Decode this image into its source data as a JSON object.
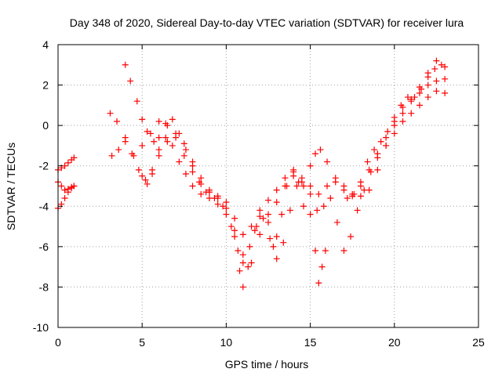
{
  "chart_data": {
    "type": "scatter",
    "title": "Day 348 of 2020, Sidereal Day-to-day VTEC variation (SDTVAR) for receiver lura",
    "xlabel": "GPS time / hours",
    "ylabel": "SDTVAR / TECUs",
    "xlim": [
      0,
      25
    ],
    "ylim": [
      -10,
      4
    ],
    "xticks": [
      0,
      5,
      10,
      15,
      20,
      25
    ],
    "yticks": [
      -10,
      -8,
      -6,
      -4,
      -2,
      0,
      2,
      4
    ],
    "grid": true,
    "marker": "+",
    "colors": {
      "series": "#ff0000",
      "grid": "#a0a0a0",
      "axis": "#000000"
    },
    "series": [
      {
        "values": [
          [
            0.0,
            -2.2
          ],
          [
            0.2,
            -2.1
          ],
          [
            0.4,
            -2.0
          ],
          [
            0.6,
            -1.85
          ],
          [
            0.8,
            -1.7
          ],
          [
            0.95,
            -1.6
          ]
        ]
      },
      {
        "values": [
          [
            0.0,
            -2.8
          ],
          [
            0.2,
            -3.0
          ],
          [
            0.4,
            -3.2
          ],
          [
            0.6,
            -3.15
          ],
          [
            0.8,
            -3.05
          ],
          [
            0.95,
            -3.0
          ]
        ]
      },
      {
        "values": [
          [
            0.0,
            -4.1
          ],
          [
            0.2,
            -3.9
          ],
          [
            0.4,
            -3.6
          ],
          [
            0.6,
            -3.3
          ],
          [
            0.8,
            -3.1
          ],
          [
            0.95,
            -3.0
          ]
        ]
      },
      {
        "values": [
          [
            3.1,
            0.6
          ],
          [
            3.5,
            0.2
          ],
          [
            4.0,
            -0.6
          ],
          [
            4.5,
            -1.5
          ],
          [
            5.0,
            -2.5
          ],
          [
            5.3,
            -2.9
          ],
          [
            5.6,
            -2.4
          ],
          [
            6.0,
            -1.5
          ],
          [
            6.5,
            -0.8
          ],
          [
            7.0,
            -0.4
          ],
          [
            7.5,
            -0.9
          ],
          [
            8.0,
            -1.8
          ],
          [
            8.5,
            -2.6
          ],
          [
            9.0,
            -3.3
          ],
          [
            9.5,
            -3.6
          ],
          [
            10.0,
            -4.1
          ],
          [
            10.5,
            -5.5
          ],
          [
            10.8,
            -7.2
          ],
          [
            11.0,
            -8.0
          ],
          [
            11.3,
            -7.0
          ],
          [
            11.7,
            -5.2
          ],
          [
            12.0,
            -4.5
          ],
          [
            12.5,
            -4.8
          ],
          [
            12.8,
            -6.0
          ],
          [
            13.0,
            -5.5
          ],
          [
            13.3,
            -4.4
          ],
          [
            13.6,
            -3.0
          ],
          [
            14.0,
            -2.2
          ],
          [
            14.3,
            -2.8
          ],
          [
            14.6,
            -3.0
          ],
          [
            15.0,
            -2.0
          ],
          [
            15.3,
            -1.4
          ],
          [
            15.6,
            -1.2
          ],
          [
            16.0,
            -1.8
          ],
          [
            16.5,
            -2.6
          ],
          [
            17.0,
            -3.2
          ],
          [
            17.5,
            -3.5
          ],
          [
            18.0,
            -3.5
          ],
          [
            18.5,
            -3.2
          ],
          [
            19.0,
            -2.2
          ],
          [
            19.5,
            -1.0
          ],
          [
            20.0,
            0.0
          ],
          [
            20.5,
            0.6
          ],
          [
            21.0,
            1.2
          ],
          [
            21.5,
            1.9
          ],
          [
            22.0,
            2.6
          ],
          [
            22.5,
            3.2
          ],
          [
            23.0,
            2.9
          ]
        ]
      },
      {
        "values": [
          [
            4.0,
            3.0
          ],
          [
            4.3,
            2.2
          ],
          [
            4.7,
            1.2
          ],
          [
            5.0,
            0.3
          ],
          [
            5.3,
            -0.3
          ],
          [
            5.7,
            -0.8
          ],
          [
            6.0,
            -0.6
          ],
          [
            6.4,
            0.1
          ],
          [
            6.8,
            0.3
          ],
          [
            7.2,
            -0.4
          ],
          [
            7.6,
            -1.2
          ],
          [
            8.0,
            -2.0
          ],
          [
            8.4,
            -2.8
          ],
          [
            8.8,
            -3.3
          ],
          [
            9.3,
            -3.6
          ],
          [
            9.8,
            -4.0
          ],
          [
            10.3,
            -5.0
          ],
          [
            10.7,
            -6.2
          ],
          [
            11.0,
            -6.8
          ],
          [
            11.4,
            -6.0
          ],
          [
            11.8,
            -5.0
          ],
          [
            12.2,
            -4.6
          ],
          [
            12.6,
            -5.6
          ],
          [
            13.0,
            -6.6
          ],
          [
            13.4,
            -5.8
          ],
          [
            13.8,
            -4.2
          ],
          [
            14.2,
            -3.0
          ],
          [
            14.6,
            -4.0
          ],
          [
            15.0,
            -4.4
          ],
          [
            15.4,
            -4.2
          ],
          [
            15.8,
            -4.0
          ],
          [
            16.2,
            -3.6
          ],
          [
            16.6,
            -4.8
          ],
          [
            17.0,
            -6.2
          ],
          [
            17.4,
            -5.5
          ],
          [
            17.8,
            -4.2
          ],
          [
            18.2,
            -3.2
          ],
          [
            18.6,
            -2.3
          ],
          [
            19.0,
            -1.4
          ],
          [
            19.5,
            -0.6
          ],
          [
            20.0,
            0.2
          ],
          [
            20.5,
            0.9
          ],
          [
            21.0,
            1.3
          ],
          [
            21.5,
            1.6
          ],
          [
            22.0,
            2.0
          ],
          [
            22.5,
            2.2
          ],
          [
            23.0,
            2.3
          ]
        ]
      },
      {
        "values": [
          [
            3.2,
            -1.5
          ],
          [
            3.6,
            -1.2
          ],
          [
            4.0,
            -0.8
          ],
          [
            4.4,
            -1.4
          ],
          [
            4.8,
            -2.2
          ],
          [
            5.2,
            -2.7
          ],
          [
            5.6,
            -2.2
          ],
          [
            6.0,
            -1.2
          ],
          [
            6.4,
            -0.6
          ],
          [
            6.8,
            -1.0
          ],
          [
            7.2,
            -1.8
          ],
          [
            7.6,
            -2.4
          ],
          [
            8.0,
            -3.0
          ],
          [
            8.5,
            -3.4
          ],
          [
            9.0,
            -3.6
          ],
          [
            9.5,
            -3.9
          ],
          [
            10.0,
            -4.4
          ],
          [
            10.5,
            -5.2
          ],
          [
            11.0,
            -6.4
          ],
          [
            11.5,
            -6.8
          ],
          [
            12.0,
            -5.4
          ],
          [
            12.5,
            -4.4
          ],
          [
            13.0,
            -3.8
          ],
          [
            13.5,
            -3.0
          ],
          [
            14.0,
            -2.5
          ],
          [
            14.5,
            -2.8
          ],
          [
            15.0,
            -3.4
          ],
          [
            15.3,
            -6.2
          ],
          [
            15.5,
            -7.8
          ],
          [
            15.7,
            -7.0
          ],
          [
            15.9,
            -6.2
          ]
        ]
      },
      {
        "values": [
          [
            5.0,
            -1.0
          ],
          [
            5.5,
            -0.4
          ],
          [
            6.0,
            0.2
          ],
          [
            6.5,
            0.0
          ],
          [
            7.0,
            -0.6
          ],
          [
            7.5,
            -1.5
          ],
          [
            8.0,
            -2.3
          ],
          [
            8.5,
            -2.9
          ],
          [
            9.0,
            -3.2
          ],
          [
            9.5,
            -3.5
          ],
          [
            10.0,
            -3.8
          ],
          [
            10.5,
            -4.6
          ],
          [
            11.0,
            -5.4
          ],
          [
            11.5,
            -5.0
          ],
          [
            12.0,
            -4.2
          ],
          [
            12.5,
            -3.7
          ],
          [
            13.0,
            -3.2
          ],
          [
            13.5,
            -2.6
          ],
          [
            14.0,
            -2.3
          ],
          [
            14.5,
            -2.6
          ],
          [
            15.0,
            -3.0
          ],
          [
            15.5,
            -3.4
          ],
          [
            16.0,
            -3.0
          ],
          [
            16.5,
            -2.8
          ],
          [
            17.0,
            -3.0
          ],
          [
            17.5,
            -3.4
          ],
          [
            18.0,
            -3.0
          ],
          [
            18.5,
            -2.2
          ],
          [
            19.0,
            -1.6
          ],
          [
            19.5,
            -1.0
          ],
          [
            20.0,
            -0.4
          ],
          [
            20.5,
            0.2
          ],
          [
            21.0,
            0.6
          ],
          [
            21.5,
            1.0
          ],
          [
            22.0,
            1.4
          ],
          [
            22.5,
            1.7
          ],
          [
            23.0,
            1.6
          ]
        ]
      },
      {
        "values": [
          [
            17.2,
            -3.6
          ],
          [
            17.6,
            -3.4
          ],
          [
            18.0,
            -2.8
          ],
          [
            18.4,
            -1.8
          ],
          [
            18.8,
            -1.2
          ],
          [
            19.2,
            -0.8
          ],
          [
            19.6,
            -0.3
          ],
          [
            20.0,
            0.4
          ],
          [
            20.4,
            1.0
          ],
          [
            20.8,
            1.4
          ],
          [
            21.2,
            1.4
          ],
          [
            21.6,
            1.8
          ],
          [
            22.0,
            2.4
          ],
          [
            22.4,
            2.8
          ],
          [
            22.8,
            3.0
          ]
        ]
      }
    ]
  }
}
